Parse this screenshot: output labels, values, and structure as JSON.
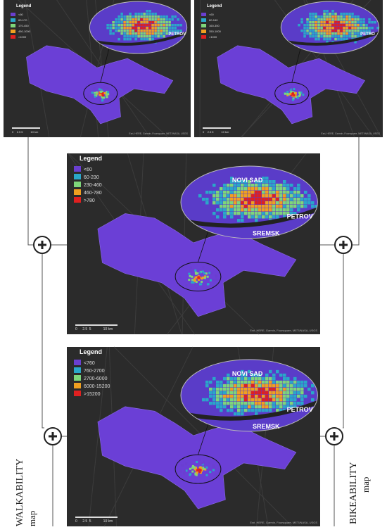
{
  "maps": [
    {
      "legend_title": "Legend",
      "legend_items": [
        "<60",
        "60-170",
        "170-450",
        "450-1000",
        ">1000"
      ],
      "inset_labels": [
        "PETROV"
      ],
      "scale": [
        "0",
        "2.5",
        "5",
        "10 km"
      ],
      "attribution": "Esri, HERE, Garmin, Foursquare, METI/NASA, USGS"
    },
    {
      "legend_title": "Legend",
      "legend_items": [
        "<60",
        "60-160",
        "160-350",
        "350-1000",
        ">1000"
      ],
      "inset_labels": [
        "PETRO"
      ],
      "scale": [
        "0",
        "2.5",
        "5",
        "10 km"
      ],
      "attribution": "Esri, HERE, Garmin, Foursquare, METI/NASA, USGS"
    },
    {
      "legend_title": "Legend",
      "legend_items": [
        "<60",
        "60-230",
        "230-460",
        "460-780",
        ">780"
      ],
      "inset_labels": [
        "NOVI SAD",
        "PETROV",
        "SREMSK"
      ],
      "scale": [
        "0",
        "2.5",
        "5",
        "10 km"
      ],
      "attribution": "Esri, HERE, Garmin, Foursquare, METI/NASA, USGS"
    },
    {
      "legend_title": "Legend",
      "legend_items": [
        "<760",
        "760-2700",
        "2700-6000",
        "6000-15200",
        ">15200"
      ],
      "inset_labels": [
        "NOVI SAD",
        "PETROV",
        "SREMSK"
      ],
      "scale": [
        "0",
        "2.5",
        "5",
        "10 km"
      ],
      "attribution": "Esri, HERE, Garmin, Foursquare, METI/NASA, USGS"
    }
  ],
  "side_labels": {
    "walkability": "WALKABILITY",
    "walkability_sub": "map",
    "bikeability": "BIKEABILITY",
    "bikeability_sub": "map"
  }
}
